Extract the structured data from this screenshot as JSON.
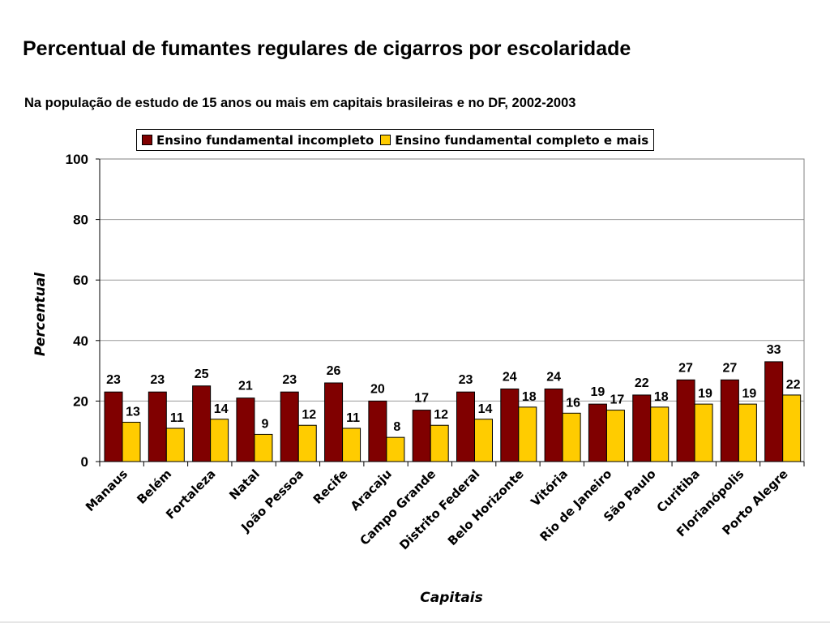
{
  "title": "Percentual de fumantes regulares de cigarros por escolaridade",
  "subtitle": "Na população de estudo de 15 anos ou mais em capitais brasileiras e no DF, 2002-2003",
  "colors": {
    "series1": "#800000",
    "series2": "#FFCC00",
    "grid": "#999999",
    "plot_border": "#808080"
  },
  "chart_data": {
    "type": "bar",
    "xlabel": "Capitais",
    "ylabel": "Percentual",
    "ylim": [
      0,
      100
    ],
    "yticks": [
      0,
      20,
      40,
      60,
      80,
      100
    ],
    "grid": true,
    "legend_position": "top",
    "categories": [
      "Manaus",
      "Belém",
      "Fortaleza",
      "Natal",
      "João Pessoa",
      "Recife",
      "Aracaju",
      "Campo Grande",
      "Distrito Federal",
      "Belo Horizonte",
      "Vitória",
      "Rio de Janeiro",
      "São Paulo",
      "Curitiba",
      "Florianópolis",
      "Porto Alegre"
    ],
    "series": [
      {
        "name": "Ensino fundamental incompleto",
        "values": [
          23,
          23,
          25,
          21,
          23,
          26,
          20,
          17,
          23,
          24,
          24,
          19,
          22,
          27,
          27,
          33
        ],
        "labels": [
          "23",
          "23",
          "25",
          "21",
          "23",
          "26",
          "20",
          "17",
          "23",
          "24",
          "24",
          "19",
          "22",
          "27",
          "27",
          "33"
        ]
      },
      {
        "name": "Ensino fundamental completo e mais",
        "values": [
          13,
          11,
          14,
          9,
          12,
          11,
          8,
          12,
          14,
          18,
          16,
          17,
          18,
          19,
          19,
          22
        ],
        "labels": [
          "13",
          "11",
          "14",
          "9",
          "12",
          "11",
          "8",
          "12",
          "14",
          "18",
          "16",
          "17",
          "18",
          "19",
          "19",
          "22"
        ]
      }
    ]
  }
}
